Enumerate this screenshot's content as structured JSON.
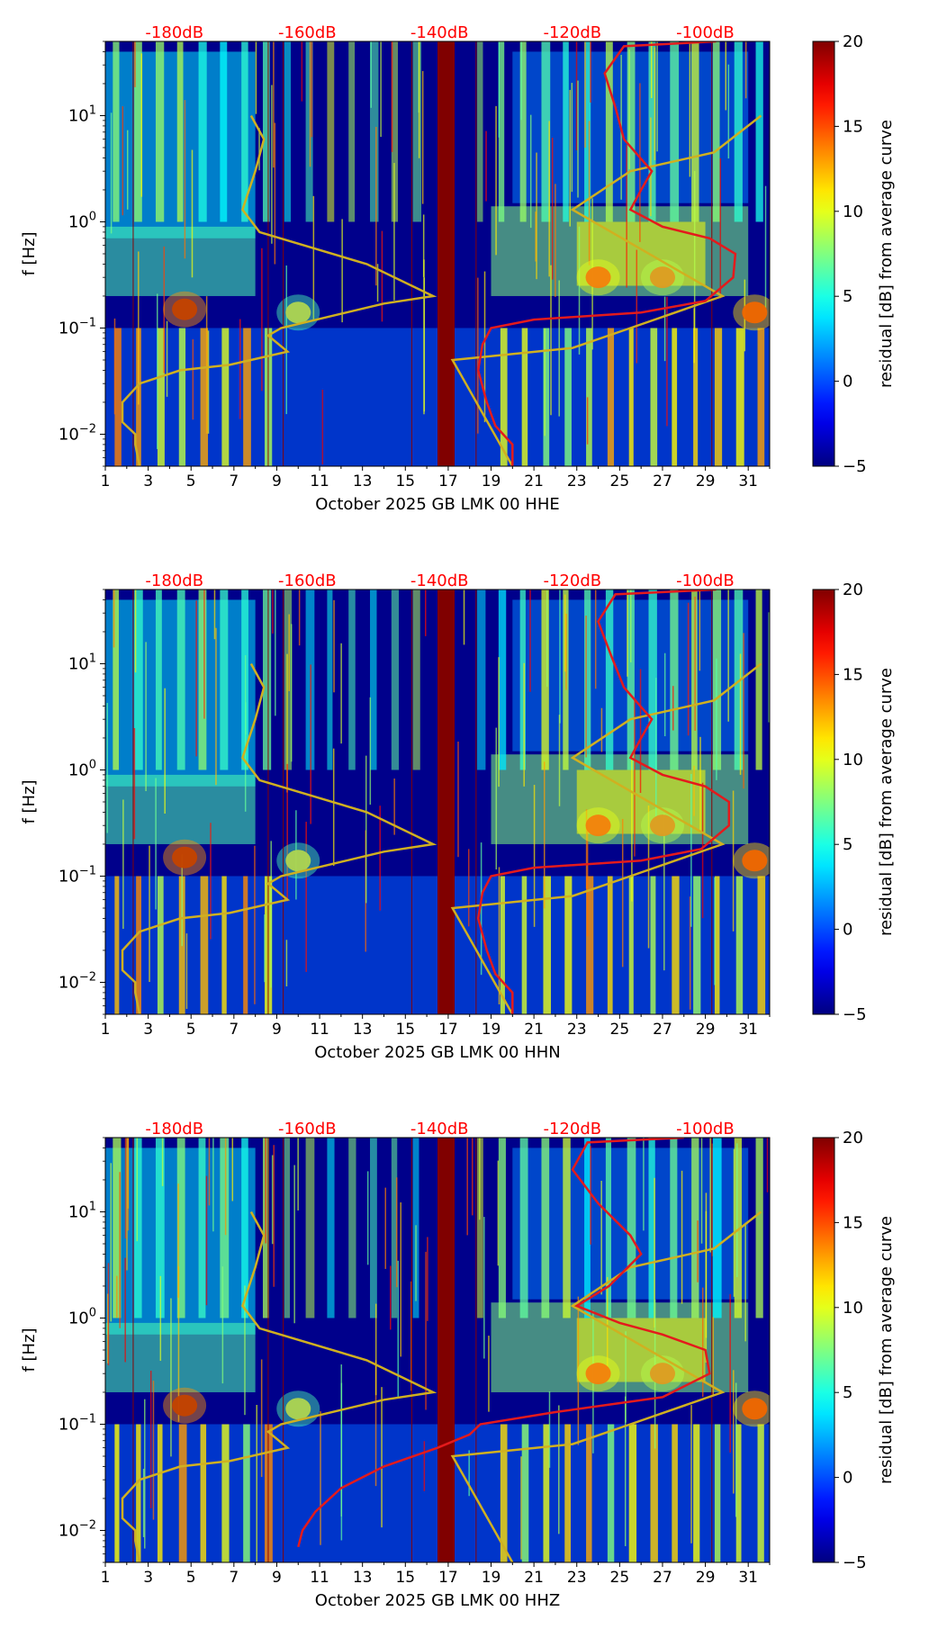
{
  "colors": {
    "red_curve": "#e41a1c",
    "yellow_curve": "#d0b020",
    "top_label": "#ff0000",
    "gap_band": "#800000",
    "background_low": "#00008b"
  },
  "chart_data": [
    {
      "type": "heatmap",
      "title": "",
      "xlabel": "October 2025 GB LMK 00 HHE",
      "ylabel": "f [Hz]",
      "xlim": [
        1,
        32
      ],
      "ylim": [
        0.005,
        50
      ],
      "yscale": "log",
      "x_ticks": [
        "1",
        "3",
        "5",
        "7",
        "9",
        "11",
        "13",
        "15",
        "17",
        "19",
        "21",
        "23",
        "25",
        "27",
        "29",
        "31"
      ],
      "y_ticks": [
        "10^-2",
        "10^-1",
        "10^0",
        "10^1"
      ],
      "top_ticks": [
        "-180dB",
        "-160dB",
        "-140dB",
        "-120dB",
        "-100dB"
      ],
      "colorbar": {
        "label": "residual [dB] from average curve",
        "range": [
          -5,
          20
        ],
        "ticks": [
          "20",
          "15",
          "10",
          "5",
          "0",
          "−5"
        ],
        "colormap": "jet"
      },
      "gap_days": [
        16.5,
        17.3
      ],
      "grid": false,
      "yellow_curve": [
        [
          2.6,
          0.005
        ],
        [
          2.4,
          0.008
        ],
        [
          2.4,
          0.01
        ],
        [
          1.8,
          0.013
        ],
        [
          1.8,
          0.02
        ],
        [
          2.6,
          0.03
        ],
        [
          4.5,
          0.04
        ],
        [
          6.8,
          0.045
        ],
        [
          9.5,
          0.06
        ],
        [
          8.6,
          0.085
        ],
        [
          9.2,
          0.1
        ],
        [
          14,
          0.17
        ],
        [
          16.3,
          0.2
        ],
        [
          13.2,
          0.4
        ],
        [
          8.2,
          0.8
        ],
        [
          7.4,
          1.3
        ],
        [
          8.0,
          3
        ],
        [
          8.4,
          6
        ],
        [
          7.8,
          10
        ]
      ],
      "yellow_curve_right": [
        [
          20,
          0.005
        ],
        [
          17.2,
          0.05
        ],
        [
          22.8,
          0.065
        ],
        [
          25.5,
          0.1
        ],
        [
          29.8,
          0.2
        ],
        [
          22.8,
          1.3
        ],
        [
          25.5,
          3
        ],
        [
          29.4,
          4.5
        ],
        [
          31.6,
          10
        ]
      ],
      "red_curve": [
        [
          20,
          0.005
        ],
        [
          20,
          0.008
        ],
        [
          19.2,
          0.012
        ],
        [
          18.8,
          0.02
        ],
        [
          18.4,
          0.04
        ],
        [
          18.6,
          0.07
        ],
        [
          19,
          0.1
        ],
        [
          21,
          0.12
        ],
        [
          26,
          0.14
        ],
        [
          29,
          0.18
        ],
        [
          30.3,
          0.3
        ],
        [
          30.4,
          0.5
        ],
        [
          29.2,
          0.7
        ],
        [
          27,
          0.9
        ],
        [
          25.5,
          1.3
        ],
        [
          26,
          2
        ],
        [
          26.5,
          3
        ],
        [
          25.2,
          6
        ],
        [
          24.8,
          12
        ],
        [
          24.3,
          25
        ],
        [
          25.2,
          45
        ],
        [
          29.5,
          50
        ]
      ]
    },
    {
      "type": "heatmap",
      "title": "",
      "xlabel": "October 2025 GB LMK 00 HHN",
      "ylabel": "f [Hz]",
      "xlim": [
        1,
        32
      ],
      "ylim": [
        0.005,
        50
      ],
      "yscale": "log",
      "x_ticks": [
        "1",
        "3",
        "5",
        "7",
        "9",
        "11",
        "13",
        "15",
        "17",
        "19",
        "21",
        "23",
        "25",
        "27",
        "29",
        "31"
      ],
      "y_ticks": [
        "10^-2",
        "10^-1",
        "10^0",
        "10^1"
      ],
      "top_ticks": [
        "-180dB",
        "-160dB",
        "-140dB",
        "-120dB",
        "-100dB"
      ],
      "colorbar": {
        "label": "residual [dB] from average curve",
        "range": [
          -5,
          20
        ],
        "ticks": [
          "20",
          "15",
          "10",
          "5",
          "0",
          "−5"
        ],
        "colormap": "jet"
      },
      "gap_days": [
        16.5,
        17.3
      ],
      "grid": false,
      "yellow_curve": [
        [
          2.6,
          0.005
        ],
        [
          2.4,
          0.008
        ],
        [
          2.4,
          0.01
        ],
        [
          1.8,
          0.013
        ],
        [
          1.8,
          0.02
        ],
        [
          2.6,
          0.03
        ],
        [
          4.5,
          0.04
        ],
        [
          6.8,
          0.045
        ],
        [
          9.5,
          0.06
        ],
        [
          8.6,
          0.085
        ],
        [
          9.2,
          0.1
        ],
        [
          14,
          0.17
        ],
        [
          16.3,
          0.2
        ],
        [
          13.2,
          0.4
        ],
        [
          8.2,
          0.8
        ],
        [
          7.4,
          1.3
        ],
        [
          8.0,
          3
        ],
        [
          8.4,
          6
        ],
        [
          7.8,
          10
        ]
      ],
      "yellow_curve_right": [
        [
          20,
          0.005
        ],
        [
          17.2,
          0.05
        ],
        [
          22.8,
          0.065
        ],
        [
          25.5,
          0.1
        ],
        [
          29.8,
          0.2
        ],
        [
          22.8,
          1.3
        ],
        [
          25.5,
          3
        ],
        [
          29.4,
          4.5
        ],
        [
          31.6,
          10
        ]
      ],
      "red_curve": [
        [
          20,
          0.005
        ],
        [
          20,
          0.008
        ],
        [
          19.2,
          0.012
        ],
        [
          18.8,
          0.02
        ],
        [
          18.4,
          0.04
        ],
        [
          18.6,
          0.07
        ],
        [
          19,
          0.1
        ],
        [
          21,
          0.12
        ],
        [
          26,
          0.14
        ],
        [
          28.8,
          0.18
        ],
        [
          30.1,
          0.3
        ],
        [
          30.1,
          0.5
        ],
        [
          29,
          0.7
        ],
        [
          27,
          0.9
        ],
        [
          25.5,
          1.3
        ],
        [
          26,
          2
        ],
        [
          26.5,
          3
        ],
        [
          25.2,
          6
        ],
        [
          24.6,
          12
        ],
        [
          24,
          25
        ],
        [
          24.8,
          45
        ],
        [
          29.5,
          50
        ]
      ]
    },
    {
      "type": "heatmap",
      "title": "",
      "xlabel": "October 2025 GB LMK 00 HHZ",
      "ylabel": "f [Hz]",
      "xlim": [
        1,
        32
      ],
      "ylim": [
        0.005,
        50
      ],
      "yscale": "log",
      "x_ticks": [
        "1",
        "3",
        "5",
        "7",
        "9",
        "11",
        "13",
        "15",
        "17",
        "19",
        "21",
        "23",
        "25",
        "27",
        "29",
        "31"
      ],
      "y_ticks": [
        "10^-2",
        "10^-1",
        "10^0",
        "10^1"
      ],
      "top_ticks": [
        "-180dB",
        "-160dB",
        "-140dB",
        "-120dB",
        "-100dB"
      ],
      "colorbar": {
        "label": "residual [dB] from average curve",
        "range": [
          -5,
          20
        ],
        "ticks": [
          "20",
          "15",
          "10",
          "5",
          "0",
          "−5"
        ],
        "colormap": "jet"
      },
      "gap_days": [
        16.5,
        17.3
      ],
      "grid": false,
      "yellow_curve": [
        [
          2.6,
          0.005
        ],
        [
          2.4,
          0.008
        ],
        [
          2.4,
          0.01
        ],
        [
          1.8,
          0.013
        ],
        [
          1.8,
          0.02
        ],
        [
          2.6,
          0.03
        ],
        [
          4.5,
          0.04
        ],
        [
          6.8,
          0.045
        ],
        [
          9.5,
          0.06
        ],
        [
          8.6,
          0.085
        ],
        [
          9.2,
          0.1
        ],
        [
          14,
          0.17
        ],
        [
          16.3,
          0.2
        ],
        [
          13.2,
          0.4
        ],
        [
          8.2,
          0.8
        ],
        [
          7.4,
          1.3
        ],
        [
          8.0,
          3
        ],
        [
          8.4,
          6
        ],
        [
          7.8,
          10
        ]
      ],
      "yellow_curve_right": [
        [
          20,
          0.005
        ],
        [
          17.2,
          0.05
        ],
        [
          22.8,
          0.065
        ],
        [
          25.5,
          0.1
        ],
        [
          29.8,
          0.2
        ],
        [
          22.8,
          1.3
        ],
        [
          25.5,
          3
        ],
        [
          29.4,
          4.5
        ],
        [
          31.6,
          10
        ]
      ],
      "red_curve": [
        [
          10,
          0.007
        ],
        [
          10.2,
          0.01
        ],
        [
          10.8,
          0.015
        ],
        [
          12,
          0.025
        ],
        [
          14,
          0.04
        ],
        [
          16.5,
          0.06
        ],
        [
          18,
          0.08
        ],
        [
          18.5,
          0.1
        ],
        [
          22,
          0.13
        ],
        [
          27,
          0.18
        ],
        [
          29.2,
          0.3
        ],
        [
          29,
          0.5
        ],
        [
          27,
          0.7
        ],
        [
          25,
          0.9
        ],
        [
          23,
          1.3
        ],
        [
          24.5,
          2
        ],
        [
          26,
          4
        ],
        [
          25.5,
          6
        ],
        [
          24,
          12
        ],
        [
          22.8,
          25
        ],
        [
          23.5,
          45
        ],
        [
          28,
          50
        ]
      ]
    }
  ]
}
